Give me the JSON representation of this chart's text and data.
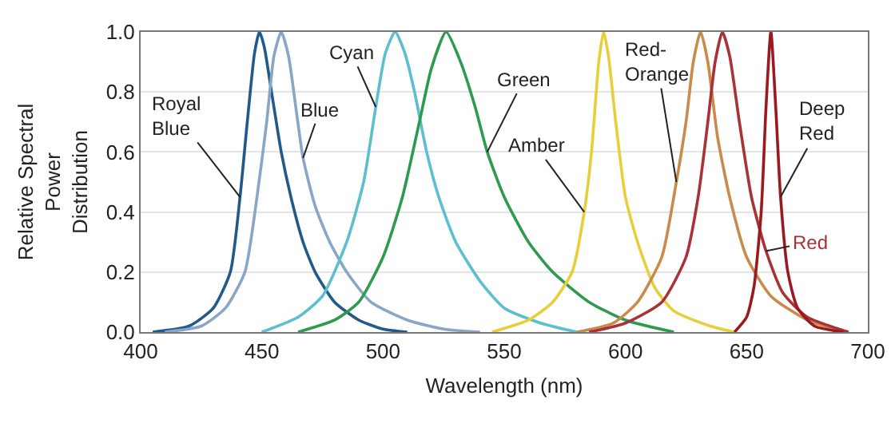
{
  "chart_data": {
    "type": "line",
    "xlabel": "Wavelength (nm)",
    "ylabel": "Relative Spectral Power Distribution",
    "xlim": [
      400,
      700
    ],
    "xticks": [
      400,
      450,
      500,
      550,
      600,
      650,
      700
    ],
    "ylim": [
      0,
      1
    ],
    "yticks": [
      {
        "value": 0,
        "label": "0.0"
      },
      {
        "value": 0.2,
        "label": "0.2"
      },
      {
        "value": 0.4,
        "label": "0.4"
      },
      {
        "value": 0.6,
        "label": "0.6"
      },
      {
        "value": 0.8,
        "label": "0.8"
      },
      {
        "value": 1,
        "label": "1.0"
      }
    ],
    "grid": "y",
    "legend": false,
    "marker": "none",
    "line_style": "solid",
    "series": [
      {
        "name": "Royal Blue",
        "color": "#1f5a8a",
        "x": [
          405,
          420,
          430,
          437,
          441,
          444,
          447,
          449,
          451,
          454,
          458,
          462,
          467,
          472,
          480,
          490,
          500,
          510
        ],
        "values": [
          0,
          0.02,
          0.08,
          0.2,
          0.45,
          0.7,
          0.93,
          1.0,
          0.95,
          0.8,
          0.6,
          0.45,
          0.3,
          0.2,
          0.1,
          0.04,
          0.01,
          0
        ]
      },
      {
        "name": "Blue",
        "color": "#8aa5c5",
        "x": [
          410,
          425,
          435,
          443,
          448,
          452,
          455,
          458,
          461,
          464,
          467,
          472,
          478,
          485,
          495,
          510,
          525,
          540
        ],
        "values": [
          0,
          0.02,
          0.08,
          0.2,
          0.45,
          0.7,
          0.92,
          1.0,
          0.92,
          0.75,
          0.58,
          0.42,
          0.3,
          0.2,
          0.1,
          0.04,
          0.01,
          0
        ]
      },
      {
        "name": "Cyan",
        "color": "#5bbfcf",
        "x": [
          450,
          465,
          475,
          485,
          492,
          497,
          501,
          505,
          509,
          513,
          518,
          523,
          530,
          540,
          550,
          565,
          580
        ],
        "values": [
          0,
          0.05,
          0.12,
          0.3,
          0.5,
          0.75,
          0.93,
          1.0,
          0.93,
          0.8,
          0.6,
          0.45,
          0.3,
          0.17,
          0.08,
          0.03,
          0
        ]
      },
      {
        "name": "Green",
        "color": "#2e9a4f",
        "x": [
          465,
          480,
          490,
          500,
          508,
          515,
          520,
          526,
          532,
          538,
          543,
          550,
          560,
          570,
          585,
          600,
          620
        ],
        "values": [
          0,
          0.04,
          0.1,
          0.25,
          0.45,
          0.7,
          0.88,
          1.0,
          0.9,
          0.75,
          0.6,
          0.45,
          0.3,
          0.2,
          0.1,
          0.04,
          0
        ]
      },
      {
        "name": "Amber",
        "color": "#e8cf3a",
        "x": [
          545,
          560,
          570,
          578,
          583,
          586,
          589,
          591,
          593,
          596,
          600,
          605,
          612,
          620,
          635,
          645
        ],
        "values": [
          0,
          0.04,
          0.1,
          0.2,
          0.4,
          0.6,
          0.9,
          1.0,
          0.92,
          0.7,
          0.45,
          0.3,
          0.15,
          0.07,
          0.02,
          0
        ]
      },
      {
        "name": "Red-Orange",
        "color": "#c98a4a",
        "x": [
          580,
          595,
          605,
          615,
          621,
          625,
          628,
          631,
          634,
          638,
          643,
          650,
          660,
          675,
          690
        ],
        "values": [
          0,
          0.03,
          0.1,
          0.25,
          0.5,
          0.7,
          0.9,
          1.0,
          0.9,
          0.65,
          0.45,
          0.25,
          0.12,
          0.04,
          0
        ]
      },
      {
        "name": "Red",
        "color": "#a83238",
        "x": [
          585,
          600,
          615,
          625,
          630,
          634,
          637,
          640,
          643,
          647,
          652,
          658,
          665,
          675,
          692
        ],
        "values": [
          0,
          0.03,
          0.1,
          0.25,
          0.45,
          0.7,
          0.9,
          1.0,
          0.92,
          0.7,
          0.45,
          0.27,
          0.13,
          0.05,
          0
        ]
      },
      {
        "name": "Deep Red",
        "color": "#9a1a22",
        "x": [
          645,
          650,
          653,
          656,
          658,
          660,
          662,
          664,
          667,
          671,
          678,
          690
        ],
        "values": [
          0,
          0.05,
          0.15,
          0.4,
          0.75,
          1.0,
          0.75,
          0.45,
          0.2,
          0.08,
          0.02,
          0
        ]
      }
    ]
  }
}
